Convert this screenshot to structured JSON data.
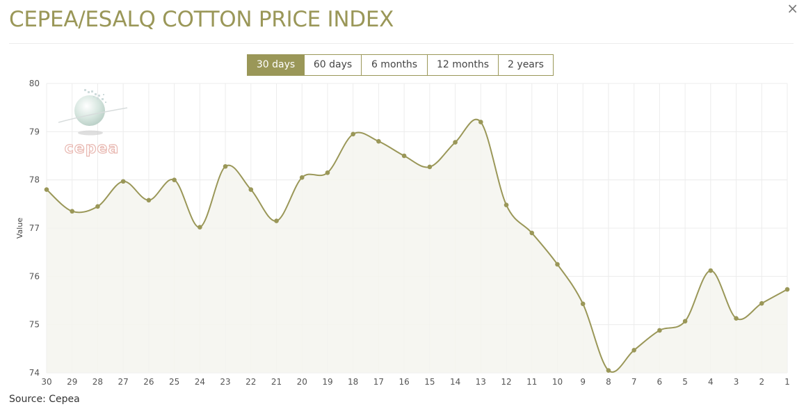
{
  "header": {
    "title": "CEPEA/ESALQ COTTON PRICE INDEX",
    "close_symbol": "×"
  },
  "range_selector": {
    "buttons": [
      "30 days",
      "60 days",
      "6 months",
      "12 months",
      "2 years"
    ],
    "active_index": 0
  },
  "watermark": {
    "text": "cepea"
  },
  "source": "Source: Cepea",
  "colors": {
    "accent": "#9a9758",
    "fill": "#f4f4ef",
    "grid": "#ececec",
    "watermark": "#e8b7b0"
  },
  "chart_data": {
    "type": "area",
    "categories": [
      "30",
      "29",
      "28",
      "27",
      "26",
      "25",
      "24",
      "23",
      "22",
      "21",
      "20",
      "19",
      "18",
      "17",
      "16",
      "15",
      "14",
      "13",
      "12",
      "11",
      "10",
      "9",
      "8",
      "7",
      "6",
      "5",
      "4",
      "3",
      "2",
      "1"
    ],
    "series": [
      {
        "values": [
          77.8,
          77.35,
          77.45,
          77.97,
          77.58,
          78.0,
          77.02,
          78.28,
          77.8,
          77.15,
          78.05,
          78.15,
          78.95,
          78.8,
          78.5,
          78.27,
          78.78,
          79.2,
          77.48,
          76.9,
          76.25,
          75.43,
          74.05,
          74.47,
          74.88,
          75.07,
          76.12,
          75.13,
          75.44,
          75.73
        ]
      }
    ],
    "xlabel": "",
    "ylabel": "Value",
    "ylim": [
      74,
      80
    ],
    "yticks": [
      74,
      75,
      76,
      77,
      78,
      79,
      80
    ],
    "grid": true,
    "legend": "none"
  }
}
